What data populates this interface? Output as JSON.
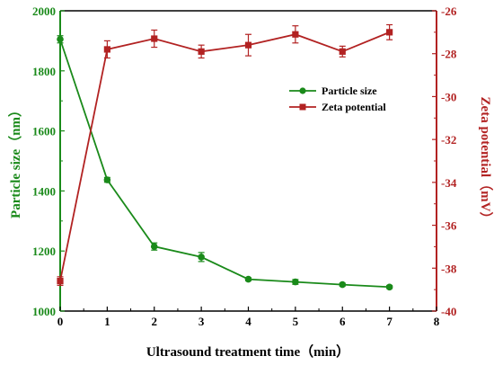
{
  "chart_data": {
    "type": "line",
    "xlabel": "Ultrasound treatment time（min）",
    "ylabel_left": "Particle size（nm）",
    "ylabel_right": "Zeta potential（mV）",
    "xlim": [
      0,
      8
    ],
    "ylim_left": [
      1000,
      2000
    ],
    "ylim_right": [
      -40,
      -26
    ],
    "x_ticks": [
      "0",
      "1",
      "2",
      "3",
      "4",
      "5",
      "6",
      "7",
      "8"
    ],
    "y_left_ticks": [
      "1000",
      "1200",
      "1400",
      "1600",
      "1800",
      "2000"
    ],
    "y_right_ticks": [
      "-40",
      "-38",
      "-36",
      "-34",
      "-32",
      "-30",
      "-28",
      "-26"
    ],
    "grid": false,
    "legend_position": "right-upper-middle",
    "colors": {
      "left_axis": "#1a8a1a",
      "right_axis": "#b22222"
    },
    "series": [
      {
        "name": "Particle size",
        "axis": "left",
        "marker": "circle",
        "color": "#1a8a1a",
        "x": [
          0,
          1,
          2,
          3,
          4,
          5,
          6,
          7
        ],
        "values": [
          1905,
          1437,
          1215,
          1180,
          1106,
          1097,
          1088,
          1080
        ],
        "errors": [
          12,
          8,
          12,
          15,
          5,
          8,
          5,
          5
        ]
      },
      {
        "name": "Zeta potential",
        "axis": "right",
        "marker": "square",
        "color": "#b22222",
        "x": [
          0,
          1,
          2,
          3,
          4,
          5,
          6,
          7
        ],
        "values": [
          -38.6,
          -27.8,
          -27.3,
          -27.9,
          -27.6,
          -27.1,
          -27.9,
          -27.0
        ],
        "errors": [
          0.2,
          0.4,
          0.4,
          0.3,
          0.5,
          0.4,
          0.25,
          0.35
        ]
      }
    ]
  }
}
